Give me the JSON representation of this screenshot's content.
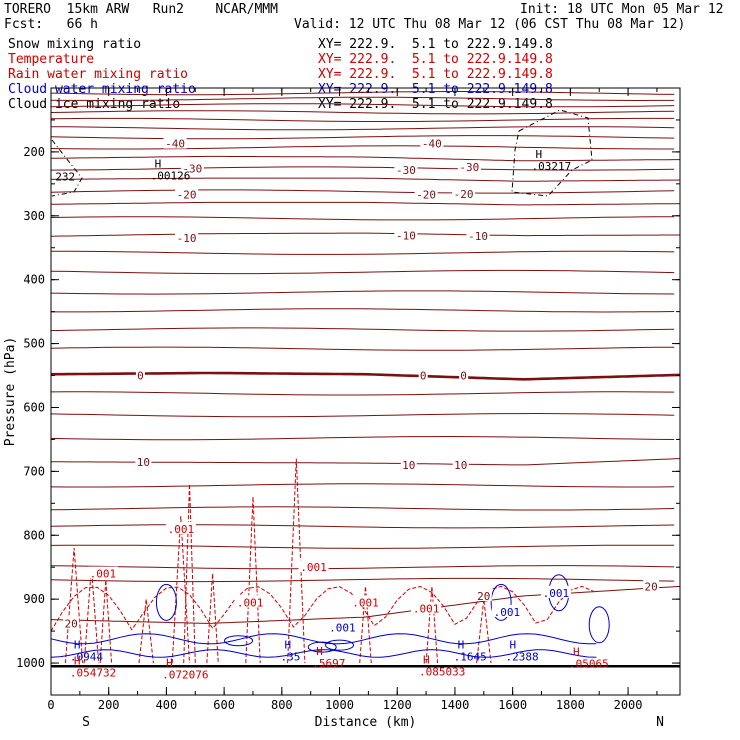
{
  "header": {
    "model": "TORERO  15km ARW   Run2    NCAR/MMM",
    "init": "Init: 18 UTC Mon 05 Mar 12",
    "fcst": "Fcst:   66 h",
    "valid": "Valid: 12 UTC Thu 08 Mar 12 (06 CST Thu 08 Mar 12)",
    "fields": [
      {
        "name": "Snow mixing ratio",
        "xy": "XY= 222.9.  5.1 to 222.9.149.8",
        "color": "#000000"
      },
      {
        "name": "Temperature",
        "xy": "XY= 222.9.  5.1 to 222.9.149.8",
        "color": "#d00000"
      },
      {
        "name": "Rain water mixing ratio",
        "xy": "XY= 222.9.  5.1 to 222.9.149.8",
        "color": "#d00000"
      },
      {
        "name": "Cloud water mixing ratio",
        "xy": "XY= 222.9.  5.1 to 222.9.149.8",
        "color": "#0000c8"
      },
      {
        "name": "Cloud ice mixing ratio",
        "xy": "XY= 222.9.  5.1 to 222.9.149.8",
        "color": "#000000"
      }
    ]
  },
  "chart_data": {
    "type": "contour-cross-section",
    "xlabel": "Distance (km)",
    "ylabel": "Pressure (hPa)",
    "xlim": [
      0,
      2180
    ],
    "ylim": [
      1050,
      100
    ],
    "x_ticks": [
      0,
      200,
      400,
      600,
      800,
      1000,
      1200,
      1400,
      1600,
      1800,
      2000
    ],
    "y_ticks": [
      200,
      300,
      400,
      500,
      600,
      700,
      800,
      900,
      1000
    ],
    "x_end_labels": {
      "left": "S",
      "right": "N"
    },
    "temperature_isotherms": [
      {
        "label": "-40",
        "p": [
          210,
          207,
          208,
          214,
          212
        ]
      },
      {
        "label": "-30",
        "p": [
          243,
          241,
          241,
          246,
          244
        ]
      },
      {
        "label": "-20",
        "p": [
          282,
          279,
          279,
          283,
          281
        ]
      },
      {
        "label": "-10",
        "p": [
          332,
          328,
          327,
          331,
          330
        ]
      },
      {
        "label": "0",
        "p": [
          548,
          546,
          548,
          556,
          549
        ]
      },
      {
        "label": "10",
        "p": [
          685,
          686,
          687,
          690,
          680
        ]
      },
      {
        "label": "20",
        "p": [
          932,
          938,
          928,
          895,
          880
        ]
      }
    ],
    "temperature_labels": [
      {
        "text": "-40",
        "x": 430,
        "p": 187
      },
      {
        "text": "-40",
        "x": 1320,
        "p": 187
      },
      {
        "text": "-30",
        "x": 490,
        "p": 226
      },
      {
        "text": "-30",
        "x": 1230,
        "p": 228
      },
      {
        "text": "-30",
        "x": 1450,
        "p": 224
      },
      {
        "text": "-20",
        "x": 470,
        "p": 267
      },
      {
        "text": "-20",
        "x": 1300,
        "p": 267
      },
      {
        "text": "-20",
        "x": 1430,
        "p": 266
      },
      {
        "text": "-10",
        "x": 470,
        "p": 335
      },
      {
        "text": "-10",
        "x": 1230,
        "p": 331
      },
      {
        "text": "-10",
        "x": 1480,
        "p": 332
      },
      {
        "text": "0",
        "x": 310,
        "p": 550
      },
      {
        "text": "0",
        "x": 1290,
        "p": 550
      },
      {
        "text": "0",
        "x": 1430,
        "p": 550
      },
      {
        "text": "10",
        "x": 320,
        "p": 685
      },
      {
        "text": "10",
        "x": 1240,
        "p": 690
      },
      {
        "text": "10",
        "x": 1420,
        "p": 690
      },
      {
        "text": "20",
        "x": 1500,
        "p": 895
      },
      {
        "text": "20",
        "x": 2080,
        "p": 880
      },
      {
        "text": "20",
        "x": 70,
        "p": 938
      }
    ],
    "rain_labels": [
      {
        "text": ".001",
        "x": 450,
        "p": 790
      },
      {
        "text": ".001",
        "x": 180,
        "p": 860
      },
      {
        "text": ".001",
        "x": 910,
        "p": 850
      },
      {
        "text": ".001",
        "x": 690,
        "p": 905
      },
      {
        "text": ".001",
        "x": 1090,
        "p": 905
      },
      {
        "text": ".001",
        "x": 1300,
        "p": 915
      }
    ],
    "cloud_water_labels": [
      {
        "text": ".001",
        "x": 1010,
        "p": 944
      },
      {
        "text": ".001",
        "x": 1750,
        "p": 890
      },
      {
        "text": ".001",
        "x": 1580,
        "p": 920
      }
    ],
    "maxima": [
      {
        "text": ".00126",
        "x": 380,
        "p": 237,
        "color": "#000000"
      },
      {
        "text": ".03217",
        "x": 1700,
        "p": 222,
        "color": "#000000"
      },
      {
        "text": ".0944",
        "x": 100,
        "p": 990,
        "color": "#0000c8"
      },
      {
        "text": ".054732",
        "x": 100,
        "p": 1015,
        "color": "#d00000"
      },
      {
        "text": ".072076",
        "x": 420,
        "p": 1018,
        "color": "#d00000"
      },
      {
        "text": ".35",
        "x": 830,
        "p": 990,
        "color": "#0000c8"
      },
      {
        "text": ".5697",
        "x": 940,
        "p": 1000,
        "color": "#d00000"
      },
      {
        "text": ".085033",
        "x": 1310,
        "p": 1013,
        "color": "#d00000"
      },
      {
        "text": ".1645",
        "x": 1430,
        "p": 990,
        "color": "#0000c8"
      },
      {
        "text": ".2388",
        "x": 1610,
        "p": 990,
        "color": "#0000c8"
      },
      {
        "text": ".05065",
        "x": 1830,
        "p": 1001,
        "color": "#d00000"
      }
    ],
    "left_edge_label": {
      "text": "232",
      "x": 15,
      "p": 245
    }
  }
}
